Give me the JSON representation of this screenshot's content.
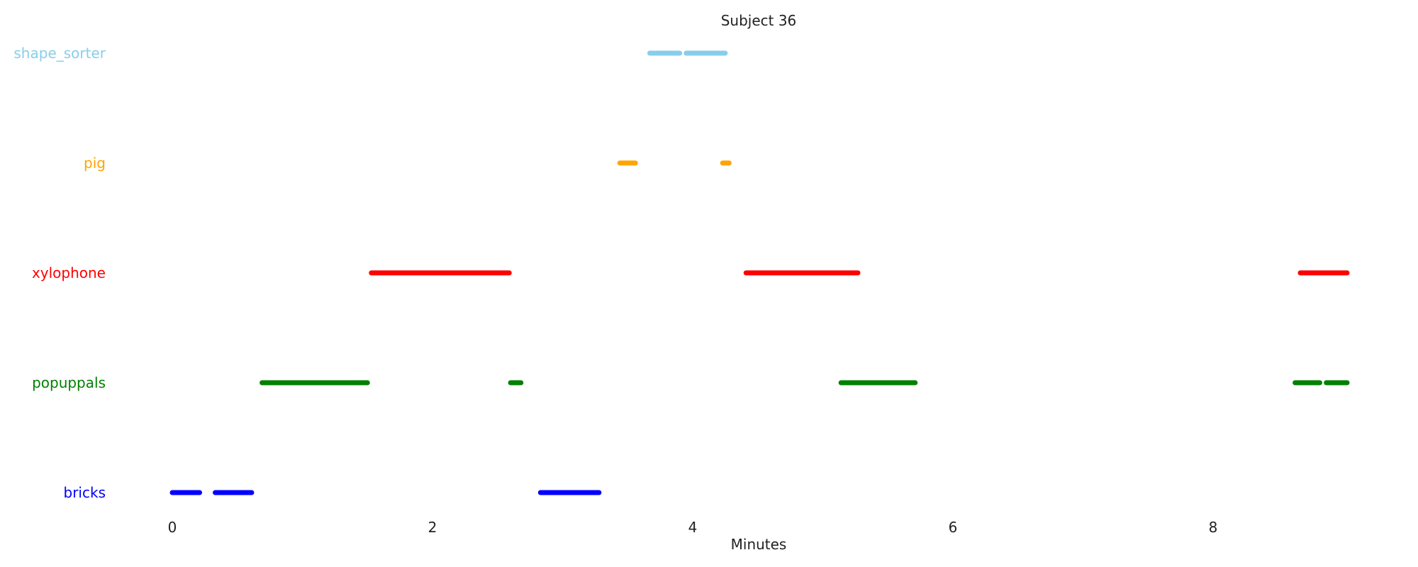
{
  "chart_data": {
    "type": "timeline",
    "title": "Subject 36",
    "xlabel": "Minutes",
    "xlim": [
      -0.4,
      9.6
    ],
    "xticks": [
      0,
      2,
      4,
      6,
      8
    ],
    "xtick_labels": [
      "0",
      "2",
      "4",
      "6",
      "8"
    ],
    "grid": false,
    "rows": [
      {
        "name": "shape_sorter",
        "color": "#87CEEB",
        "segments": [
          [
            3.67,
            3.9
          ],
          [
            3.95,
            4.25
          ]
        ]
      },
      {
        "name": "pig",
        "color": "#FFA500",
        "segments": [
          [
            3.44,
            3.56
          ],
          [
            4.23,
            4.28
          ]
        ]
      },
      {
        "name": "xylophone",
        "color": "#FF0000",
        "segments": [
          [
            1.53,
            2.59
          ],
          [
            4.41,
            5.27
          ],
          [
            8.67,
            9.03
          ]
        ]
      },
      {
        "name": "popuppals",
        "color": "#008000",
        "segments": [
          [
            0.69,
            1.5
          ],
          [
            2.6,
            2.68
          ],
          [
            5.14,
            5.71
          ],
          [
            8.63,
            8.82
          ],
          [
            8.87,
            9.03
          ]
        ]
      },
      {
        "name": "bricks",
        "color": "#0000FF",
        "segments": [
          [
            0.0,
            0.21
          ],
          [
            0.33,
            0.61
          ],
          [
            2.83,
            3.28
          ]
        ]
      }
    ]
  }
}
